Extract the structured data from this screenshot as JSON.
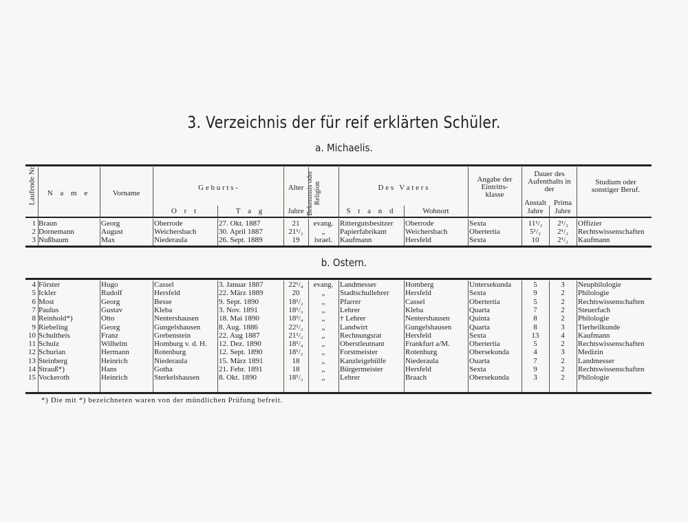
{
  "title": "3. Verzeichnis der für reif erklärten Schüler.",
  "section_a": "a. Michaelis.",
  "section_b": "b. Ostern.",
  "headers": {
    "nr": "Laufende Nr.",
    "name": "N a m e",
    "vorname": "Vorname",
    "geburts": "G e b u r t s -",
    "ort": "O r t",
    "tag": "T a g",
    "alter": "Alter",
    "jahre": "Jahre",
    "religion": "Bekenntnis oder Religion",
    "vaters": "D e s   V a t e r s",
    "stand": "S t a n d",
    "wohnort": "Wohnort",
    "eintritt": "Angabe der Eintritts-klasse",
    "dauer": "Dauer des Aufenthalts in der",
    "anstalt": "Anstalt",
    "prima": "Prima",
    "anstalt_jahre": "Jahre",
    "prima_jahre": "Jahre",
    "studium": "Studium oder sonstiger Beruf."
  },
  "michaelis": [
    [
      "1",
      "Braun",
      "Georg",
      "Oberrode",
      "27. Okt. 1887",
      "21",
      "evang.",
      "Rittergutsbesitzer",
      "Oberrode",
      "Sexta",
      "11¹/₂",
      "2¹/₂",
      "Offizier"
    ],
    [
      "2",
      "Dornemann",
      "August",
      "Weichersbach",
      "30. April 1887",
      "21¹/₂",
      "„",
      "Papierfabrikant",
      "Weichersbach",
      "Obertertia",
      "5¹/₂",
      "2¹/₂",
      "Rechtswissenschaften"
    ],
    [
      "3",
      "Nußbaum",
      "Max",
      "Niederaula",
      "26. Sept. 1889",
      "19",
      "israel.",
      "Kaufmann",
      "Hersfeld",
      "Sexta",
      "10",
      "2¹/₂",
      "Kaufmann"
    ]
  ],
  "ostern": [
    [
      "4",
      "Förster",
      "Hugo",
      "Cassel",
      "3. Januar 1887",
      "22¹/₄",
      "evang.",
      "Landmesser",
      "Homberg",
      "Untersekunda",
      "5",
      "3",
      "Neuphilologie"
    ],
    [
      "5",
      "Ickler",
      "Rudolf",
      "Hersfeld",
      "22. März 1889",
      "20",
      "„",
      "Stadtschullehrer",
      "Hersfeld",
      "Sexta",
      "9",
      "2",
      "Philologie"
    ],
    [
      "6",
      "Most",
      "Georg",
      "Besse",
      "9. Sept. 1890",
      "18¹/₂",
      "„",
      "Pfarrer",
      "Cassel",
      "Obertertia",
      "5",
      "2",
      "Rechtswissenschaften"
    ],
    [
      "7",
      "Paulus",
      "Gustav",
      "Kleba",
      "3. Nov. 1891",
      "18¹/₃",
      "„",
      "Lehrer",
      "Kleba",
      "Quarta",
      "7",
      "2",
      "Steuerfach"
    ],
    [
      "8",
      "Reinhold*)",
      "Otto",
      "Nentershausen",
      "18. Mai 1890",
      "18³/₄",
      "„",
      "† Lehrer",
      "Nentershausen",
      "Quinta",
      "8",
      "2",
      "Philologie"
    ],
    [
      "9",
      "Riebeling",
      "Georg",
      "Gungelshausen",
      "8. Aug. 1886",
      "22¹/₂",
      "„",
      "Landwirt",
      "Gungelshausen",
      "Quarta",
      "8",
      "3",
      "Tierheilkunde"
    ],
    [
      "10",
      "Schultheis",
      "Franz",
      "Grebenstein",
      "22. Aug 1887",
      "21¹/₂",
      "„",
      "Rechnungsrat",
      "Hersfeld",
      "Sexta",
      "13",
      "4",
      "Kaufmann"
    ],
    [
      "11",
      "Schulz",
      "Wilhelm",
      "Homburg v. d. H.",
      "12. Dez. 1890",
      "18¹/₄",
      "„",
      "Oberstleutnant",
      "Frankfurt a/M.",
      "Obertertia",
      "5",
      "2",
      "Rechtswissenschaften"
    ],
    [
      "12",
      "Schurian",
      "Hermann",
      "Rotenburg",
      "12. Sept. 1890",
      "18¹/₂",
      "„",
      "Forstmeister",
      "Rotenburg",
      "Obersekunda",
      "4",
      "3",
      "Medizin"
    ],
    [
      "13",
      "Steinberg",
      "Heinrich",
      "Niederaula",
      "15. März 1891",
      "18",
      "„",
      "Kanzleigehülfe",
      "Niederaula",
      "Ouarta",
      "7",
      "2",
      "Landmesser"
    ],
    [
      "14",
      "Strauß*)",
      "Hans",
      "Gotha",
      "21. Febr. 1891",
      "18",
      "„",
      "Bürgermeister",
      "Hersfeld",
      "Sexta",
      "9",
      "2",
      "Rechtswissenschaften"
    ],
    [
      "15",
      "Vockeroth",
      "Heinrich",
      "Sterkelshausen",
      "8. Okt. 1890",
      "18¹/₂",
      "„",
      "Lehrer",
      "Braach",
      "Obersekunda",
      "3",
      "2",
      "Philologie"
    ]
  ],
  "footnote": "*) Die mit *) bezeichneten waren von der mündlichen Prüfung befreit."
}
